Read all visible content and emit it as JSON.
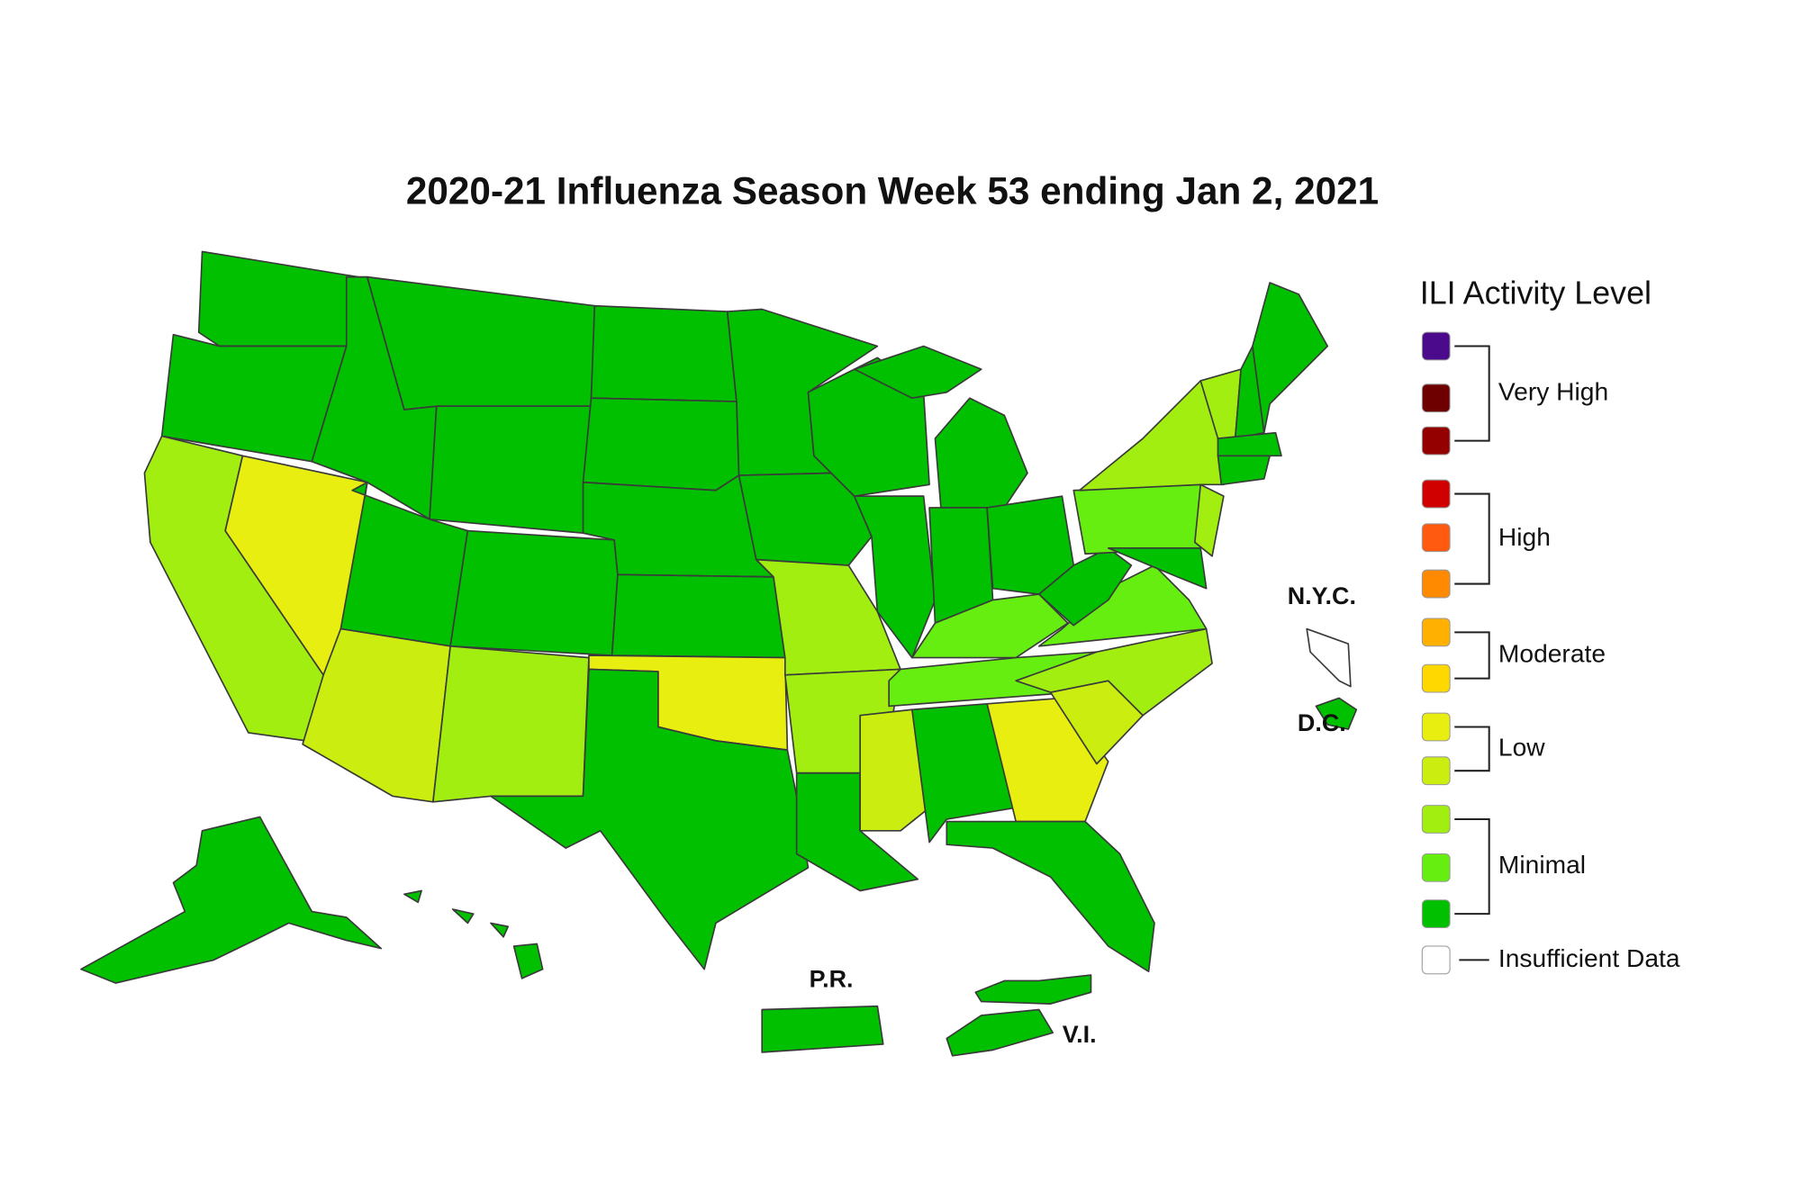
{
  "title": "2020-21 Influenza Season Week 53 ending Jan 2, 2021",
  "map_labels": [
    "N.Y.C.",
    "D.C.",
    "P.R.",
    "V.I."
  ],
  "legend": {
    "title": "ILI Activity Level",
    "colors": [
      "#4b0a8c",
      "#6e0000",
      "#940000",
      "#d00000",
      "#ff5a10",
      "#ff8a00",
      "#ffb000",
      "#ffd800",
      "#e8ee10",
      "#cbee10",
      "#a2ee10",
      "#66ee10",
      "#00c000"
    ],
    "groups": [
      "Very High",
      "High",
      "Moderate",
      "Low",
      "Minimal"
    ],
    "no_data": {
      "label": "Insufficient Data",
      "color": "#ffffff"
    }
  }
}
